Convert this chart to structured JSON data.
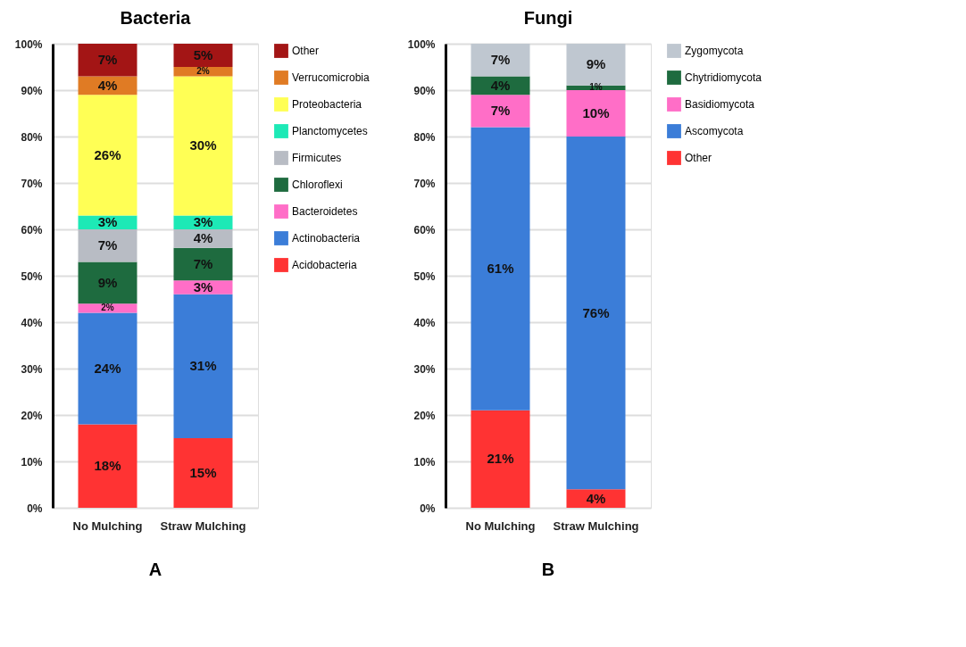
{
  "chart_data": [
    {
      "type": "bar",
      "title": "Bacteria",
      "categories": [
        "No Mulching",
        "Straw Mulching"
      ],
      "stacked": true,
      "ylim": [
        0,
        100
      ],
      "yticks": [
        {
          "value": 0,
          "label": "0%"
        },
        {
          "value": 10,
          "label": "10%"
        },
        {
          "value": 20,
          "label": "20%"
        },
        {
          "value": 30,
          "label": "30%"
        },
        {
          "value": 40,
          "label": "40%"
        },
        {
          "value": 50,
          "label": "50%"
        },
        {
          "value": 60,
          "label": "60%"
        },
        {
          "value": 70,
          "label": "70%"
        },
        {
          "value": 80,
          "label": "80%"
        },
        {
          "value": 90,
          "label": "90%"
        },
        {
          "value": 100,
          "label": "100%"
        }
      ],
      "grid": "y",
      "legend": "right",
      "annotations": [
        "A"
      ],
      "series": [
        {
          "name": "Acidobacteria",
          "color": "#ff3333",
          "values": [
            18,
            15
          ],
          "value_labels": [
            "18%",
            "15%"
          ]
        },
        {
          "name": "Actinobacteria",
          "color": "#3b7dd8",
          "values": [
            24,
            31
          ],
          "value_labels": [
            "24%",
            "31%"
          ]
        },
        {
          "name": "Bacteroidetes",
          "color": "#ff6ec7",
          "values": [
            2,
            3
          ],
          "value_labels": [
            "2%",
            "3%"
          ]
        },
        {
          "name": "Chloroflexi",
          "color": "#1e6b3f",
          "values": [
            9,
            7
          ],
          "value_labels": [
            "9%",
            "7%"
          ]
        },
        {
          "name": "Firmicutes",
          "color": "#b8bcc4",
          "values": [
            7,
            4
          ],
          "value_labels": [
            "7%",
            "4%"
          ]
        },
        {
          "name": "Planctomycetes",
          "color": "#1de9b6",
          "values": [
            3,
            3
          ],
          "value_labels": [
            "3%",
            "3%"
          ]
        },
        {
          "name": "Proteobacteria",
          "color": "#ffff55",
          "values": [
            26,
            30
          ],
          "value_labels": [
            "26%",
            "30%"
          ]
        },
        {
          "name": "Verrucomicrobia",
          "color": "#e07b24",
          "values": [
            4,
            2
          ],
          "value_labels": [
            "4%",
            "2%"
          ]
        },
        {
          "name": "Other",
          "color": "#a31515",
          "values": [
            7,
            5
          ],
          "value_labels": [
            "7%",
            "5%"
          ]
        }
      ]
    },
    {
      "type": "bar",
      "title": "Fungi",
      "categories": [
        "No Mulching",
        "Straw Mulching"
      ],
      "stacked": true,
      "ylim": [
        0,
        100
      ],
      "yticks": [
        {
          "value": 0,
          "label": "0%"
        },
        {
          "value": 10,
          "label": "10%"
        },
        {
          "value": 20,
          "label": "20%"
        },
        {
          "value": 30,
          "label": "30%"
        },
        {
          "value": 40,
          "label": "40%"
        },
        {
          "value": 50,
          "label": "50%"
        },
        {
          "value": 60,
          "label": "60%"
        },
        {
          "value": 70,
          "label": "70%"
        },
        {
          "value": 80,
          "label": "80%"
        },
        {
          "value": 90,
          "label": "90%"
        },
        {
          "value": 100,
          "label": "100%"
        }
      ],
      "grid": "y",
      "legend": "right",
      "annotations": [
        "B"
      ],
      "series": [
        {
          "name": "Other",
          "color": "#ff3333",
          "values": [
            21,
            4
          ],
          "value_labels": [
            "21%",
            "4%"
          ]
        },
        {
          "name": "Ascomycota",
          "color": "#3b7dd8",
          "values": [
            61,
            76
          ],
          "value_labels": [
            "61%",
            "76%"
          ]
        },
        {
          "name": "Basidiomycota",
          "color": "#ff6ec7",
          "values": [
            7,
            10
          ],
          "value_labels": [
            "7%",
            "10%"
          ]
        },
        {
          "name": "Chytridiomycota",
          "color": "#1e6b3f",
          "values": [
            4,
            1
          ],
          "value_labels": [
            "4%",
            "1%"
          ]
        },
        {
          "name": "Zygomycota",
          "color": "#bfc7d0",
          "values": [
            7,
            9
          ],
          "value_labels": [
            "7%",
            "9%"
          ]
        }
      ]
    }
  ]
}
